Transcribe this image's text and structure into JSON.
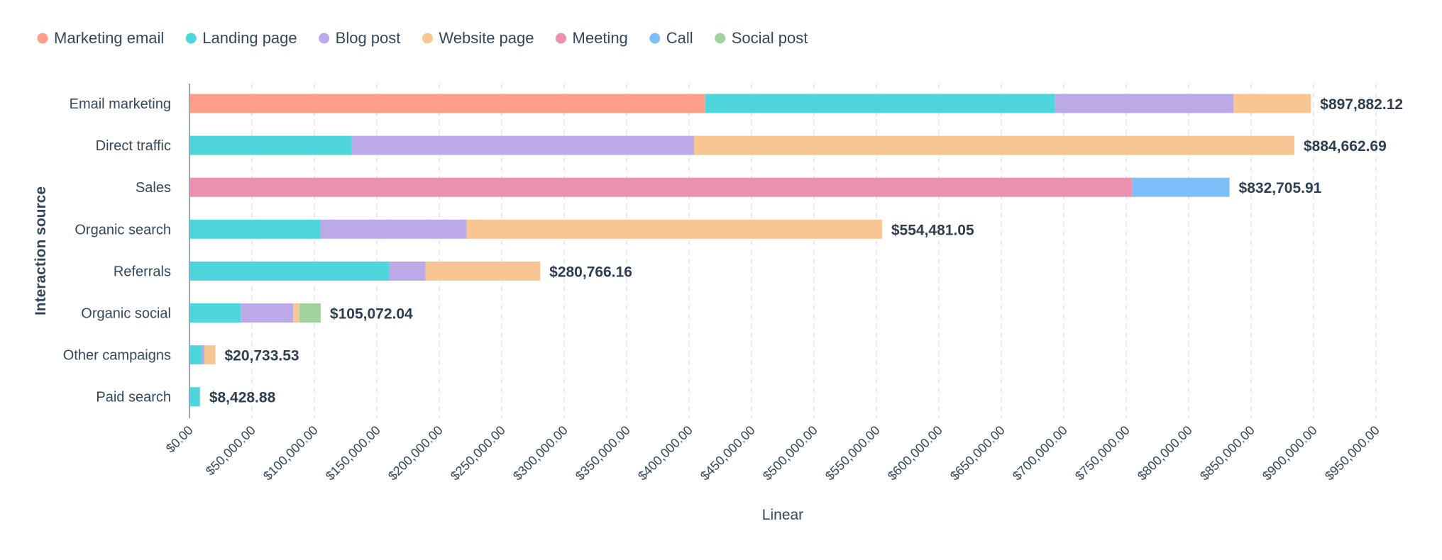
{
  "chart_data": {
    "type": "bar",
    "orientation": "horizontal",
    "stacked": true,
    "xlabel": "Linear",
    "ylabel": "Interaction source",
    "xlim": [
      0,
      950000
    ],
    "x_ticks": [
      0,
      50000,
      100000,
      150000,
      200000,
      250000,
      300000,
      350000,
      400000,
      450000,
      500000,
      550000,
      600000,
      650000,
      700000,
      750000,
      800000,
      850000,
      900000,
      950000
    ],
    "x_tick_labels": [
      "$0.00",
      "$50,000.00",
      "$100,000.00",
      "$150,000.00",
      "$200,000.00",
      "$250,000.00",
      "$300,000.00",
      "$350,000.00",
      "$400,000.00",
      "$450,000.00",
      "$500,000.00",
      "$550,000.00",
      "$600,000.00",
      "$650,000.00",
      "$700,000.00",
      "$750,000.00",
      "$800,000.00",
      "$850,000.00",
      "$900,000.00",
      "$950,000.00"
    ],
    "grid": true,
    "legend_position": "top-left",
    "categories": [
      "Email marketing",
      "Direct traffic",
      "Sales",
      "Organic search",
      "Referrals",
      "Organic social",
      "Other campaigns",
      "Paid search"
    ],
    "totals": [
      "$897,882.12",
      "$884,662.69",
      "$832,705.91",
      "$554,481.05",
      "$280,766.16",
      "$105,072.04",
      "$20,733.53",
      "$8,428.88"
    ],
    "total_values": [
      897882.12,
      884662.69,
      832705.91,
      554481.05,
      280766.16,
      105072.04,
      20733.53,
      8428.88
    ],
    "series": [
      {
        "name": "Marketing email",
        "color": "#ff9f8a",
        "values": [
          413000,
          0,
          0,
          0,
          0,
          0,
          0,
          0
        ]
      },
      {
        "name": "Landing page",
        "color": "#4fd5dc",
        "values": [
          280000,
          130000,
          0,
          105000,
          160000,
          41000,
          10000,
          8428.88
        ]
      },
      {
        "name": "Blog post",
        "color": "#bca9e8",
        "values": [
          143000,
          274000,
          0,
          117000,
          29000,
          42000,
          2000,
          0
        ]
      },
      {
        "name": "Website page",
        "color": "#f7c692",
        "values": [
          61882.12,
          480662.69,
          0,
          332481.05,
          91766.16,
          5000,
          8733.53,
          0
        ]
      },
      {
        "name": "Meeting",
        "color": "#ea90b1",
        "values": [
          0,
          0,
          755000,
          0,
          0,
          0,
          0,
          0
        ]
      },
      {
        "name": "Call",
        "color": "#7fbff9",
        "values": [
          0,
          0,
          77705.91,
          0,
          0,
          0,
          0,
          0
        ]
      },
      {
        "name": "Social post",
        "color": "#a2d39d",
        "values": [
          0,
          0,
          0,
          0,
          0,
          17072.04,
          0,
          0
        ]
      }
    ]
  }
}
